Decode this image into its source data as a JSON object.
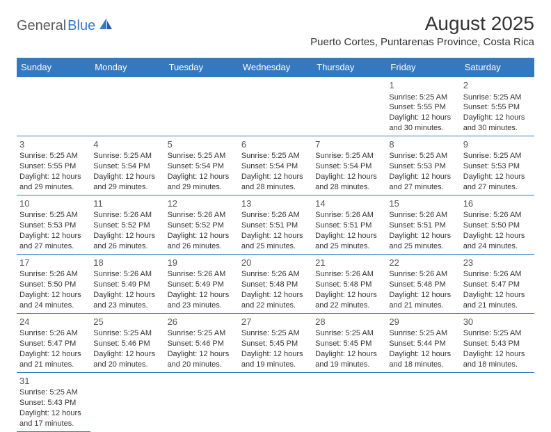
{
  "logo": {
    "text1": "General",
    "text2": "Blue"
  },
  "title": "August 2025",
  "location": "Puerto Cortes, Puntarenas Province, Costa Rica",
  "colors": {
    "header_bg": "#3478c0",
    "header_fg": "#ffffff",
    "rule": "#3478c0",
    "text": "#333333",
    "logo_gray": "#5a5a5a",
    "logo_blue": "#3478c0"
  },
  "fonts": {
    "title_size": 28,
    "location_size": 15,
    "dayheader_size": 13,
    "daynum_size": 13,
    "body_size": 11
  },
  "day_headers": [
    "Sunday",
    "Monday",
    "Tuesday",
    "Wednesday",
    "Thursday",
    "Friday",
    "Saturday"
  ],
  "weeks": [
    [
      null,
      null,
      null,
      null,
      null,
      {
        "n": "1",
        "sr": "5:25 AM",
        "ss": "5:55 PM",
        "dl": "12 hours and 30 minutes."
      },
      {
        "n": "2",
        "sr": "5:25 AM",
        "ss": "5:55 PM",
        "dl": "12 hours and 30 minutes."
      }
    ],
    [
      {
        "n": "3",
        "sr": "5:25 AM",
        "ss": "5:55 PM",
        "dl": "12 hours and 29 minutes."
      },
      {
        "n": "4",
        "sr": "5:25 AM",
        "ss": "5:54 PM",
        "dl": "12 hours and 29 minutes."
      },
      {
        "n": "5",
        "sr": "5:25 AM",
        "ss": "5:54 PM",
        "dl": "12 hours and 29 minutes."
      },
      {
        "n": "6",
        "sr": "5:25 AM",
        "ss": "5:54 PM",
        "dl": "12 hours and 28 minutes."
      },
      {
        "n": "7",
        "sr": "5:25 AM",
        "ss": "5:54 PM",
        "dl": "12 hours and 28 minutes."
      },
      {
        "n": "8",
        "sr": "5:25 AM",
        "ss": "5:53 PM",
        "dl": "12 hours and 27 minutes."
      },
      {
        "n": "9",
        "sr": "5:25 AM",
        "ss": "5:53 PM",
        "dl": "12 hours and 27 minutes."
      }
    ],
    [
      {
        "n": "10",
        "sr": "5:25 AM",
        "ss": "5:53 PM",
        "dl": "12 hours and 27 minutes."
      },
      {
        "n": "11",
        "sr": "5:26 AM",
        "ss": "5:52 PM",
        "dl": "12 hours and 26 minutes."
      },
      {
        "n": "12",
        "sr": "5:26 AM",
        "ss": "5:52 PM",
        "dl": "12 hours and 26 minutes."
      },
      {
        "n": "13",
        "sr": "5:26 AM",
        "ss": "5:51 PM",
        "dl": "12 hours and 25 minutes."
      },
      {
        "n": "14",
        "sr": "5:26 AM",
        "ss": "5:51 PM",
        "dl": "12 hours and 25 minutes."
      },
      {
        "n": "15",
        "sr": "5:26 AM",
        "ss": "5:51 PM",
        "dl": "12 hours and 25 minutes."
      },
      {
        "n": "16",
        "sr": "5:26 AM",
        "ss": "5:50 PM",
        "dl": "12 hours and 24 minutes."
      }
    ],
    [
      {
        "n": "17",
        "sr": "5:26 AM",
        "ss": "5:50 PM",
        "dl": "12 hours and 24 minutes."
      },
      {
        "n": "18",
        "sr": "5:26 AM",
        "ss": "5:49 PM",
        "dl": "12 hours and 23 minutes."
      },
      {
        "n": "19",
        "sr": "5:26 AM",
        "ss": "5:49 PM",
        "dl": "12 hours and 23 minutes."
      },
      {
        "n": "20",
        "sr": "5:26 AM",
        "ss": "5:48 PM",
        "dl": "12 hours and 22 minutes."
      },
      {
        "n": "21",
        "sr": "5:26 AM",
        "ss": "5:48 PM",
        "dl": "12 hours and 22 minutes."
      },
      {
        "n": "22",
        "sr": "5:26 AM",
        "ss": "5:48 PM",
        "dl": "12 hours and 21 minutes."
      },
      {
        "n": "23",
        "sr": "5:26 AM",
        "ss": "5:47 PM",
        "dl": "12 hours and 21 minutes."
      }
    ],
    [
      {
        "n": "24",
        "sr": "5:26 AM",
        "ss": "5:47 PM",
        "dl": "12 hours and 21 minutes."
      },
      {
        "n": "25",
        "sr": "5:25 AM",
        "ss": "5:46 PM",
        "dl": "12 hours and 20 minutes."
      },
      {
        "n": "26",
        "sr": "5:25 AM",
        "ss": "5:46 PM",
        "dl": "12 hours and 20 minutes."
      },
      {
        "n": "27",
        "sr": "5:25 AM",
        "ss": "5:45 PM",
        "dl": "12 hours and 19 minutes."
      },
      {
        "n": "28",
        "sr": "5:25 AM",
        "ss": "5:45 PM",
        "dl": "12 hours and 19 minutes."
      },
      {
        "n": "29",
        "sr": "5:25 AM",
        "ss": "5:44 PM",
        "dl": "12 hours and 18 minutes."
      },
      {
        "n": "30",
        "sr": "5:25 AM",
        "ss": "5:43 PM",
        "dl": "12 hours and 18 minutes."
      }
    ],
    [
      {
        "n": "31",
        "sr": "5:25 AM",
        "ss": "5:43 PM",
        "dl": "12 hours and 17 minutes."
      },
      null,
      null,
      null,
      null,
      null,
      null
    ]
  ],
  "labels": {
    "sunrise": "Sunrise: ",
    "sunset": "Sunset: ",
    "daylight": "Daylight: "
  }
}
